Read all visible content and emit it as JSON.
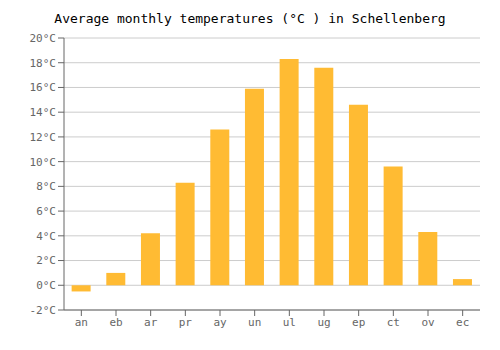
{
  "chart_data": {
    "type": "bar",
    "title": "Average monthly temperatures (°C ) in Schellenberg",
    "categories": [
      "an",
      "eb",
      "ar",
      "pr",
      "ay",
      "un",
      "ul",
      "ug",
      "ep",
      "ct",
      "ov",
      "ec"
    ],
    "values": [
      -0.5,
      1.0,
      4.2,
      8.3,
      12.6,
      15.9,
      18.3,
      17.6,
      14.6,
      9.6,
      4.3,
      0.5
    ],
    "color": "#FFBB33",
    "ylim": [
      -2,
      20
    ],
    "yticks": [
      {
        "value": -2,
        "label": "-2°C"
      },
      {
        "value": 0,
        "label": "0°C"
      },
      {
        "value": 2,
        "label": "2°C"
      },
      {
        "value": 4,
        "label": "4°C"
      },
      {
        "value": 6,
        "label": "6°C"
      },
      {
        "value": 8,
        "label": "8°C"
      },
      {
        "value": 10,
        "label": "10°C"
      },
      {
        "value": 12,
        "label": "12°C"
      },
      {
        "value": 14,
        "label": "14°C"
      },
      {
        "value": 16,
        "label": "16°C"
      },
      {
        "value": 18,
        "label": "18°C"
      },
      {
        "value": 20,
        "label": "20°C"
      }
    ],
    "grid": true
  }
}
